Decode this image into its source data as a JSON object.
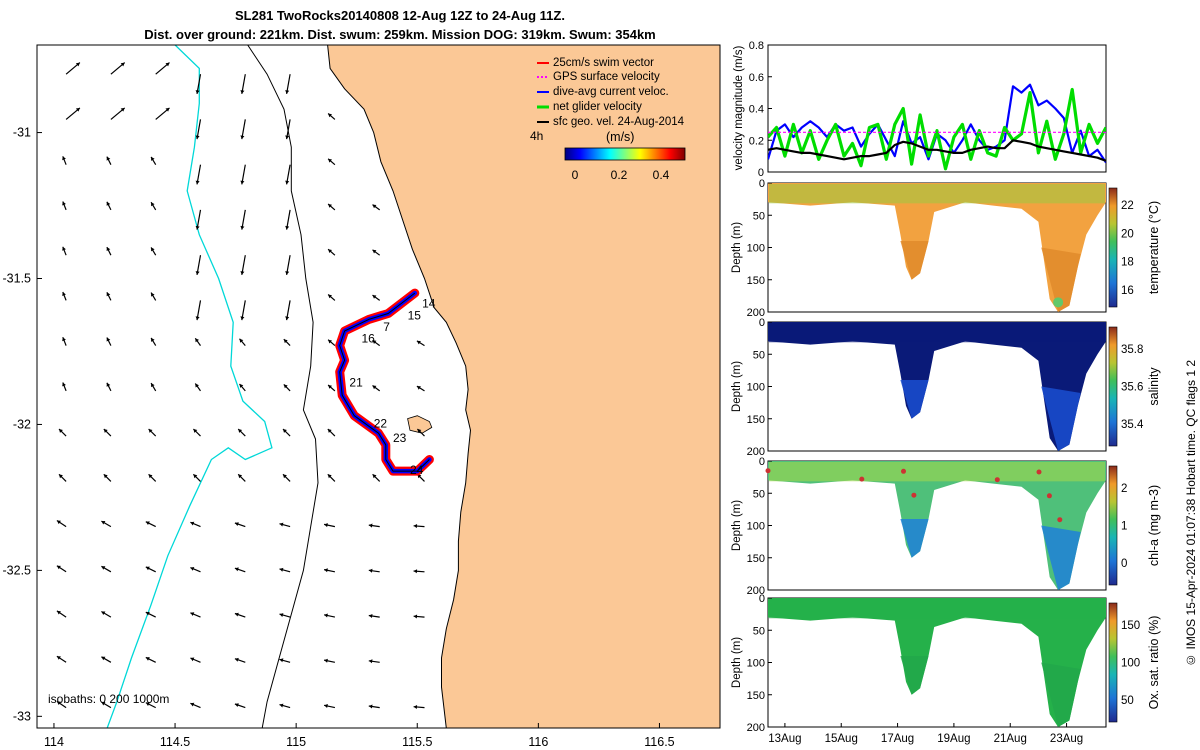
{
  "header": {
    "title": "SL281 TwoRocks20140808 12-Aug 12Z to 24-Aug 11Z.",
    "subtitle": "Dist. over ground: 221km. Dist. swum: 259km. Mission DOG: 319km. Swum: 354km"
  },
  "side_label": "© IMOS 15-Apr-2024 01:07:38 Hobart time. QC flags 1 2",
  "colors": {
    "land": "#fbc896",
    "coast_line": "#000000",
    "isobath_200": "#000000",
    "isobath_1000": "#00d8d8",
    "swim": "#ff0000",
    "gps": "#ff00ff",
    "dive": "#0000ff",
    "net": "#00dd00",
    "sfc": "#000000"
  },
  "chart_data": [
    {
      "type": "map",
      "xlim": [
        113.93,
        116.75
      ],
      "ylim": [
        -33.04,
        -30.7
      ],
      "x_ticks": [
        "114",
        "114.5",
        "115",
        "115.5",
        "116",
        "116.5"
      ],
      "y_ticks": [
        "-31",
        "-31.5",
        "-32",
        "-32.5",
        "-33"
      ],
      "legend": {
        "position": "top-right",
        "entries": [
          "25cm/s swim vector",
          "GPS surface velocity",
          "dive-avg current veloc.",
          "net glider velocity",
          "sfc geo. vel. 24-Aug-2014"
        ],
        "time_label": "4h"
      },
      "colorbar": {
        "label": "(m/s)",
        "ticks": [
          "0",
          "0.2",
          "0.4"
        ],
        "range": [
          0,
          0.5
        ]
      },
      "isobaths_label": "isobaths: 0   200  1000m",
      "track_day_labels": [
        {
          "label": "14",
          "lon": 115.52,
          "lat": -31.6
        },
        {
          "label": "15",
          "lon": 115.46,
          "lat": -31.64
        },
        {
          "label": "7",
          "lon": 115.36,
          "lat": -31.68
        },
        {
          "label": "16",
          "lon": 115.27,
          "lat": -31.72
        },
        {
          "label": "21",
          "lon": 115.22,
          "lat": -31.87
        },
        {
          "label": "22",
          "lon": 115.32,
          "lat": -32.01
        },
        {
          "label": "23",
          "lon": 115.4,
          "lat": -32.06
        },
        {
          "label": "24",
          "lon": 115.47,
          "lat": -32.17
        }
      ],
      "glider_track": [
        [
          115.49,
          -31.55
        ],
        [
          115.38,
          -31.62
        ],
        [
          115.3,
          -31.64
        ],
        [
          115.2,
          -31.68
        ],
        [
          115.18,
          -31.73
        ],
        [
          115.2,
          -31.78
        ],
        [
          115.18,
          -31.82
        ],
        [
          115.19,
          -31.9
        ],
        [
          115.24,
          -31.97
        ],
        [
          115.34,
          -32.03
        ],
        [
          115.37,
          -32.07
        ],
        [
          115.37,
          -32.12
        ],
        [
          115.4,
          -32.16
        ],
        [
          115.5,
          -32.16
        ],
        [
          115.55,
          -32.12
        ]
      ],
      "coastline": [
        [
          115.13,
          -30.7
        ],
        [
          115.14,
          -30.78
        ],
        [
          115.2,
          -30.85
        ],
        [
          115.28,
          -30.92
        ],
        [
          115.32,
          -31.0
        ],
        [
          115.35,
          -31.1
        ],
        [
          115.4,
          -31.2
        ],
        [
          115.44,
          -31.3
        ],
        [
          115.48,
          -31.4
        ],
        [
          115.53,
          -31.5
        ],
        [
          115.57,
          -31.6
        ],
        [
          115.62,
          -31.65
        ],
        [
          115.66,
          -31.72
        ],
        [
          115.7,
          -31.8
        ],
        [
          115.71,
          -31.88
        ],
        [
          115.7,
          -31.95
        ],
        [
          115.72,
          -32.02
        ],
        [
          115.71,
          -32.1
        ],
        [
          115.7,
          -32.2
        ],
        [
          115.68,
          -32.3
        ],
        [
          115.67,
          -32.4
        ],
        [
          115.67,
          -32.5
        ],
        [
          115.65,
          -32.6
        ],
        [
          115.62,
          -32.7
        ],
        [
          115.6,
          -32.8
        ],
        [
          115.6,
          -32.9
        ],
        [
          115.62,
          -33.04
        ]
      ],
      "isobath_200": [
        [
          114.8,
          -30.7
        ],
        [
          114.88,
          -30.8
        ],
        [
          114.95,
          -30.92
        ],
        [
          114.98,
          -31.05
        ],
        [
          114.98,
          -31.2
        ],
        [
          115.02,
          -31.35
        ],
        [
          115.04,
          -31.5
        ],
        [
          115.07,
          -31.65
        ],
        [
          115.06,
          -31.8
        ],
        [
          115.03,
          -31.95
        ],
        [
          115.08,
          -32.05
        ],
        [
          115.09,
          -32.2
        ],
        [
          115.06,
          -32.35
        ],
        [
          115.03,
          -32.5
        ],
        [
          114.98,
          -32.65
        ],
        [
          114.93,
          -32.8
        ],
        [
          114.88,
          -32.95
        ],
        [
          114.86,
          -33.04
        ]
      ],
      "isobath_1000": [
        [
          114.5,
          -30.7
        ],
        [
          114.6,
          -30.78
        ],
        [
          114.6,
          -30.9
        ],
        [
          114.58,
          -31.05
        ],
        [
          114.55,
          -31.2
        ],
        [
          114.6,
          -31.35
        ],
        [
          114.68,
          -31.5
        ],
        [
          114.74,
          -31.65
        ],
        [
          114.73,
          -31.8
        ],
        [
          114.78,
          -31.92
        ],
        [
          114.87,
          -31.99
        ],
        [
          114.9,
          -32.08
        ],
        [
          114.79,
          -32.12
        ],
        [
          114.72,
          -32.08
        ],
        [
          114.65,
          -32.12
        ],
        [
          114.56,
          -32.28
        ],
        [
          114.47,
          -32.45
        ],
        [
          114.4,
          -32.62
        ],
        [
          114.32,
          -32.8
        ],
        [
          114.26,
          -32.95
        ],
        [
          114.22,
          -33.04
        ]
      ],
      "rottnest_island": [
        [
          115.46,
          -31.98
        ],
        [
          115.5,
          -31.97
        ],
        [
          115.55,
          -31.99
        ],
        [
          115.56,
          -32.01
        ],
        [
          115.52,
          -32.03
        ],
        [
          115.47,
          -32.02
        ]
      ]
    },
    {
      "type": "line",
      "x_ticks": [
        "13Aug",
        "15Aug",
        "17Aug",
        "19Aug",
        "21Aug",
        "23Aug"
      ],
      "ylabel": "velocity magnitude (m/s)",
      "ylim": [
        0,
        0.8
      ],
      "y_ticks": [
        "0",
        "0.2",
        "0.4",
        "0.6",
        "0.8"
      ],
      "x": [
        0,
        0.3,
        0.6,
        0.9,
        1.2,
        1.5,
        1.8,
        2.1,
        2.4,
        2.7,
        3.0,
        3.3,
        3.6,
        3.9,
        4.2,
        4.5,
        4.8,
        5.1,
        5.4,
        5.7,
        6.0,
        6.3,
        6.6,
        6.9,
        7.2,
        7.5,
        7.8,
        8.1,
        8.4,
        8.7,
        9.0,
        9.3,
        9.6,
        9.9,
        10.2,
        10.5,
        10.8,
        11.1,
        11.4,
        11.7,
        12.0
      ],
      "series": [
        {
          "name": "dive-avg current veloc.",
          "values": [
            0.08,
            0.26,
            0.3,
            0.22,
            0.28,
            0.32,
            0.28,
            0.22,
            0.3,
            0.26,
            0.28,
            0.16,
            0.24,
            0.3,
            0.2,
            0.1,
            0.32,
            0.18,
            0.22,
            0.08,
            0.24,
            0.2,
            0.12,
            0.2,
            0.3,
            0.2,
            0.14,
            0.16,
            0.2,
            0.54,
            0.5,
            0.55,
            0.42,
            0.45,
            0.4,
            0.34,
            0.12,
            0.26,
            0.1,
            0.14,
            0.06
          ]
        },
        {
          "name": "net glider velocity",
          "values": [
            0.22,
            0.28,
            0.1,
            0.3,
            0.12,
            0.26,
            0.08,
            0.2,
            0.3,
            0.1,
            0.18,
            0.04,
            0.28,
            0.3,
            0.08,
            0.3,
            0.4,
            0.05,
            0.36,
            0.1,
            0.26,
            0.02,
            0.22,
            0.3,
            0.08,
            0.26,
            0.12,
            0.1,
            0.28,
            0.2,
            0.24,
            0.5,
            0.12,
            0.32,
            0.08,
            0.24,
            0.52,
            0.12,
            0.3,
            0.18,
            0.28
          ]
        },
        {
          "name": "sfc geo. vel. 24-Aug-2014",
          "values": [
            0.14,
            0.15,
            0.14,
            0.13,
            0.12,
            0.12,
            0.11,
            0.1,
            0.09,
            0.08,
            0.09,
            0.1,
            0.1,
            0.11,
            0.12,
            0.17,
            0.19,
            0.18,
            0.16,
            0.14,
            0.14,
            0.13,
            0.12,
            0.12,
            0.14,
            0.15,
            0.16,
            0.15,
            0.15,
            0.2,
            0.19,
            0.18,
            0.16,
            0.15,
            0.14,
            0.13,
            0.12,
            0.11,
            0.1,
            0.09,
            0.07
          ]
        },
        {
          "name": "GPS surface velocity",
          "values": [
            0.25,
            0.25,
            0.25,
            0.25,
            0.25,
            0.25,
            0.25,
            0.25,
            0.25,
            0.25,
            0.25,
            0.25,
            0.25,
            0.25,
            0.25,
            0.25,
            0.25,
            0.25,
            0.25,
            0.25,
            0.25,
            0.25,
            0.25,
            0.25,
            0.25,
            0.25,
            0.25,
            0.25,
            0.25,
            0.25,
            0.25,
            0.25,
            0.25,
            0.25,
            0.25,
            0.25,
            0.25,
            0.25,
            0.25,
            0.25,
            0.25
          ]
        }
      ]
    },
    {
      "type": "heatmap",
      "name": "temperature",
      "ylabel": "Depth (m)",
      "colorbar_label": "temperature (°C)",
      "colorbar_ticks": [
        "16",
        "18",
        "20",
        "22"
      ],
      "range": [
        15,
        22
      ],
      "ylim": [
        0,
        200
      ],
      "y_ticks": [
        "0",
        "50",
        "100",
        "150",
        "200"
      ]
    },
    {
      "type": "heatmap",
      "name": "salinity",
      "ylabel": "Depth (m)",
      "colorbar_label": "salinity",
      "colorbar_ticks": [
        "35.4",
        "35.6",
        "35.8"
      ],
      "range": [
        35.3,
        35.9
      ],
      "ylim": [
        0,
        200
      ],
      "y_ticks": [
        "0",
        "50",
        "100",
        "150",
        "200"
      ]
    },
    {
      "type": "heatmap",
      "name": "chl-a",
      "ylabel": "Depth (m)",
      "colorbar_label": "chl-a (mg m-3)",
      "colorbar_ticks": [
        "0",
        "1",
        "2"
      ],
      "range": [
        0,
        2
      ],
      "ylim": [
        0,
        200
      ],
      "y_ticks": [
        "0",
        "50",
        "100",
        "150",
        "200"
      ]
    },
    {
      "type": "heatmap",
      "name": "oxygen",
      "ylabel": "Depth (m)",
      "colorbar_label": "Ox. sat. ratio (%)",
      "colorbar_ticks": [
        "50",
        "100",
        "150"
      ],
      "range": [
        25,
        175
      ],
      "ylim": [
        0,
        200
      ],
      "y_ticks": [
        "0",
        "50",
        "100",
        "150",
        "200"
      ]
    }
  ]
}
